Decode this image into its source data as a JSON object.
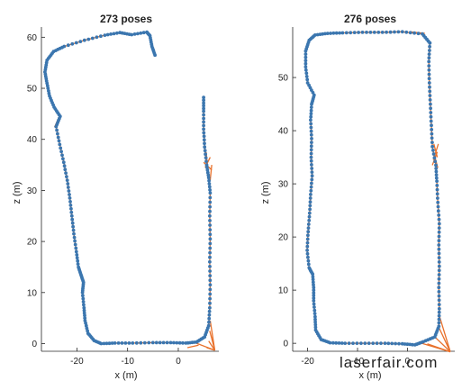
{
  "watermark": "laserfair.com",
  "colors": {
    "edge": "#e8702a",
    "pose": "#3b76af",
    "axis": "#262626",
    "watermark": "#8b1ea5"
  },
  "chart_data": [
    {
      "type": "scatter",
      "title": "273 poses",
      "xlabel": "x (m)",
      "ylabel": "z (m)",
      "xlim": [
        -27,
        8
      ],
      "ylim": [
        -1.5,
        62
      ],
      "xticks": [
        "-20",
        "-10",
        "0"
      ],
      "xtick_values": [
        -20,
        -10,
        0
      ],
      "yticks": [
        "0",
        "10",
        "20",
        "30",
        "40",
        "50",
        "60"
      ],
      "ytick_values": [
        0,
        10,
        20,
        30,
        40,
        50,
        60
      ],
      "path": [
        [
          -4.6,
          56.5
        ],
        [
          -5.2,
          58.2
        ],
        [
          -5.6,
          60.3
        ],
        [
          -6.2,
          61.0
        ],
        [
          -9.2,
          60.5
        ],
        [
          -11.5,
          60.9
        ],
        [
          -14.5,
          60.4
        ],
        [
          -18.5,
          59.4
        ],
        [
          -22.5,
          58.2
        ],
        [
          -24.6,
          57.2
        ],
        [
          -25.9,
          55.5
        ],
        [
          -26.3,
          53.2
        ],
        [
          -25.9,
          51.0
        ],
        [
          -25.4,
          48.5
        ],
        [
          -24.5,
          46.3
        ],
        [
          -23.3,
          44.5
        ],
        [
          -24.1,
          42.5
        ],
        [
          -23.4,
          39.0
        ],
        [
          -22.6,
          35.5
        ],
        [
          -21.9,
          32.0
        ],
        [
          -21.4,
          28.5
        ],
        [
          -21.0,
          25.0
        ],
        [
          -20.6,
          21.5
        ],
        [
          -20.1,
          18.0
        ],
        [
          -19.7,
          15.0
        ],
        [
          -19.2,
          13.5
        ],
        [
          -18.7,
          12.0
        ],
        [
          -18.9,
          10.0
        ],
        [
          -18.6,
          7.0
        ],
        [
          -18.4,
          4.5
        ],
        [
          -17.8,
          2.0
        ],
        [
          -16.6,
          0.6
        ],
        [
          -15.2,
          0.0
        ],
        [
          -12.5,
          0.1
        ],
        [
          -9.0,
          0.1
        ],
        [
          -5.0,
          0.2
        ],
        [
          -1.5,
          0.2
        ],
        [
          1.5,
          0.1
        ],
        [
          3.6,
          0.3
        ],
        [
          5.2,
          1.3
        ],
        [
          6.0,
          3.5
        ],
        [
          6.2,
          7.0
        ],
        [
          6.3,
          11.5
        ],
        [
          6.2,
          16.0
        ],
        [
          6.3,
          20.5
        ],
        [
          6.2,
          25.0
        ],
        [
          6.3,
          29.5
        ],
        [
          6.0,
          32.5
        ],
        [
          5.6,
          35.0
        ],
        [
          5.2,
          38.5
        ],
        [
          5.0,
          42.0
        ],
        [
          5.0,
          45.5
        ],
        [
          5.0,
          48.2
        ]
      ],
      "loop_closures": [
        {
          "from": [
            5.3,
            34.5
          ],
          "to": [
            6.3,
            36.5
          ]
        },
        {
          "from": [
            5.0,
            35.5
          ],
          "to": [
            6.6,
            34.0
          ]
        },
        {
          "from": [
            5.5,
            37.5
          ],
          "to": [
            6.0,
            32.5
          ]
        },
        {
          "from": [
            6.6,
            35.0
          ],
          "to": [
            6.3,
            32.0
          ]
        },
        {
          "from": [
            5.6,
            -0.8
          ],
          "to": [
            7.2,
            -1.3
          ]
        },
        {
          "from": [
            6.0,
            0.5
          ],
          "to": [
            7.2,
            -1.3
          ]
        },
        {
          "from": [
            6.2,
            2.5
          ],
          "to": [
            7.2,
            -1.3
          ]
        },
        {
          "from": [
            6.3,
            4.5
          ],
          "to": [
            7.2,
            -1.3
          ]
        },
        {
          "from": [
            3.5,
            0.1
          ],
          "to": [
            7.2,
            -1.3
          ]
        },
        {
          "from": [
            1.8,
            -0.8
          ],
          "to": [
            4.0,
            -0.3
          ]
        },
        {
          "from": [
            -23.6,
            44.2
          ],
          "to": [
            -24.4,
            42.4
          ]
        },
        {
          "from": [
            -19.4,
            13.6
          ],
          "to": [
            -18.8,
            11.8
          ]
        }
      ]
    },
    {
      "type": "scatter",
      "title": "276 poses",
      "xlabel": "x (m)",
      "ylabel": "z (m)",
      "xlim": [
        -23,
        9.5
      ],
      "ylim": [
        -1.5,
        59.5
      ],
      "xticks": [
        "-20",
        "-10",
        "0"
      ],
      "xtick_values": [
        -20,
        -10,
        0
      ],
      "yticks": [
        "0",
        "10",
        "20",
        "30",
        "40",
        "50"
      ],
      "ytick_values": [
        0,
        10,
        20,
        30,
        40,
        50
      ],
      "path": [
        [
          4.5,
          56.5
        ],
        [
          3.0,
          58.2
        ],
        [
          -1.0,
          58.6
        ],
        [
          -5.0,
          58.5
        ],
        [
          -9.0,
          58.5
        ],
        [
          -13.0,
          58.4
        ],
        [
          -16.0,
          58.3
        ],
        [
          -18.5,
          58.0
        ],
        [
          -19.7,
          57.0
        ],
        [
          -20.4,
          55.0
        ],
        [
          -20.4,
          52.0
        ],
        [
          -20.0,
          49.0
        ],
        [
          -18.7,
          46.7
        ],
        [
          -19.2,
          45.0
        ],
        [
          -19.4,
          42.0
        ],
        [
          -19.2,
          38.5
        ],
        [
          -19.3,
          35.0
        ],
        [
          -19.1,
          31.5
        ],
        [
          -19.4,
          28.0
        ],
        [
          -19.6,
          24.5
        ],
        [
          -19.9,
          21.0
        ],
        [
          -20.1,
          17.5
        ],
        [
          -19.7,
          14.2
        ],
        [
          -19.0,
          13.0
        ],
        [
          -18.8,
          10.5
        ],
        [
          -18.8,
          8.0
        ],
        [
          -18.5,
          5.0
        ],
        [
          -18.4,
          2.5
        ],
        [
          -17.3,
          0.7
        ],
        [
          -15.5,
          0.1
        ],
        [
          -12.5,
          0.0
        ],
        [
          -8.5,
          0.0
        ],
        [
          -4.5,
          0.0
        ],
        [
          -1.0,
          -0.1
        ],
        [
          1.5,
          -0.3
        ],
        [
          3.2,
          0.3
        ],
        [
          5.5,
          1.2
        ],
        [
          6.3,
          3.2
        ],
        [
          6.4,
          6.5
        ],
        [
          6.3,
          10.5
        ],
        [
          6.4,
          14.5
        ],
        [
          6.3,
          18.5
        ],
        [
          6.4,
          22.5
        ],
        [
          6.1,
          26.5
        ],
        [
          5.9,
          30.5
        ],
        [
          5.7,
          33.5
        ],
        [
          5.0,
          37.0
        ],
        [
          4.8,
          41.0
        ],
        [
          4.6,
          45.0
        ],
        [
          4.4,
          49.0
        ],
        [
          4.3,
          53.0
        ],
        [
          4.5,
          56.5
        ]
      ],
      "loop_closures": [
        {
          "from": [
            5.0,
            33.5
          ],
          "to": [
            6.0,
            36.0
          ]
        },
        {
          "from": [
            5.1,
            36.5
          ],
          "to": [
            6.1,
            33.0
          ]
        },
        {
          "from": [
            5.3,
            37.5
          ],
          "to": [
            6.0,
            35.0
          ]
        },
        {
          "from": [
            5.2,
            34.5
          ],
          "to": [
            6.2,
            37.5
          ]
        },
        {
          "from": [
            4.0,
            -0.1
          ],
          "to": [
            8.6,
            -1.6
          ]
        },
        {
          "from": [
            5.5,
            1.2
          ],
          "to": [
            8.6,
            -1.6
          ]
        },
        {
          "from": [
            6.2,
            3.2
          ],
          "to": [
            8.6,
            -1.6
          ]
        },
        {
          "from": [
            6.3,
            5.5
          ],
          "to": [
            8.6,
            -1.6
          ]
        },
        {
          "from": [
            2.5,
            0.1
          ],
          "to": [
            8.6,
            -1.6
          ]
        },
        {
          "from": [
            0.5,
            58.6
          ],
          "to": [
            3.5,
            58.3
          ]
        },
        {
          "from": [
            -18.8,
            46.6
          ],
          "to": [
            -19.3,
            44.9
          ]
        }
      ]
    }
  ]
}
